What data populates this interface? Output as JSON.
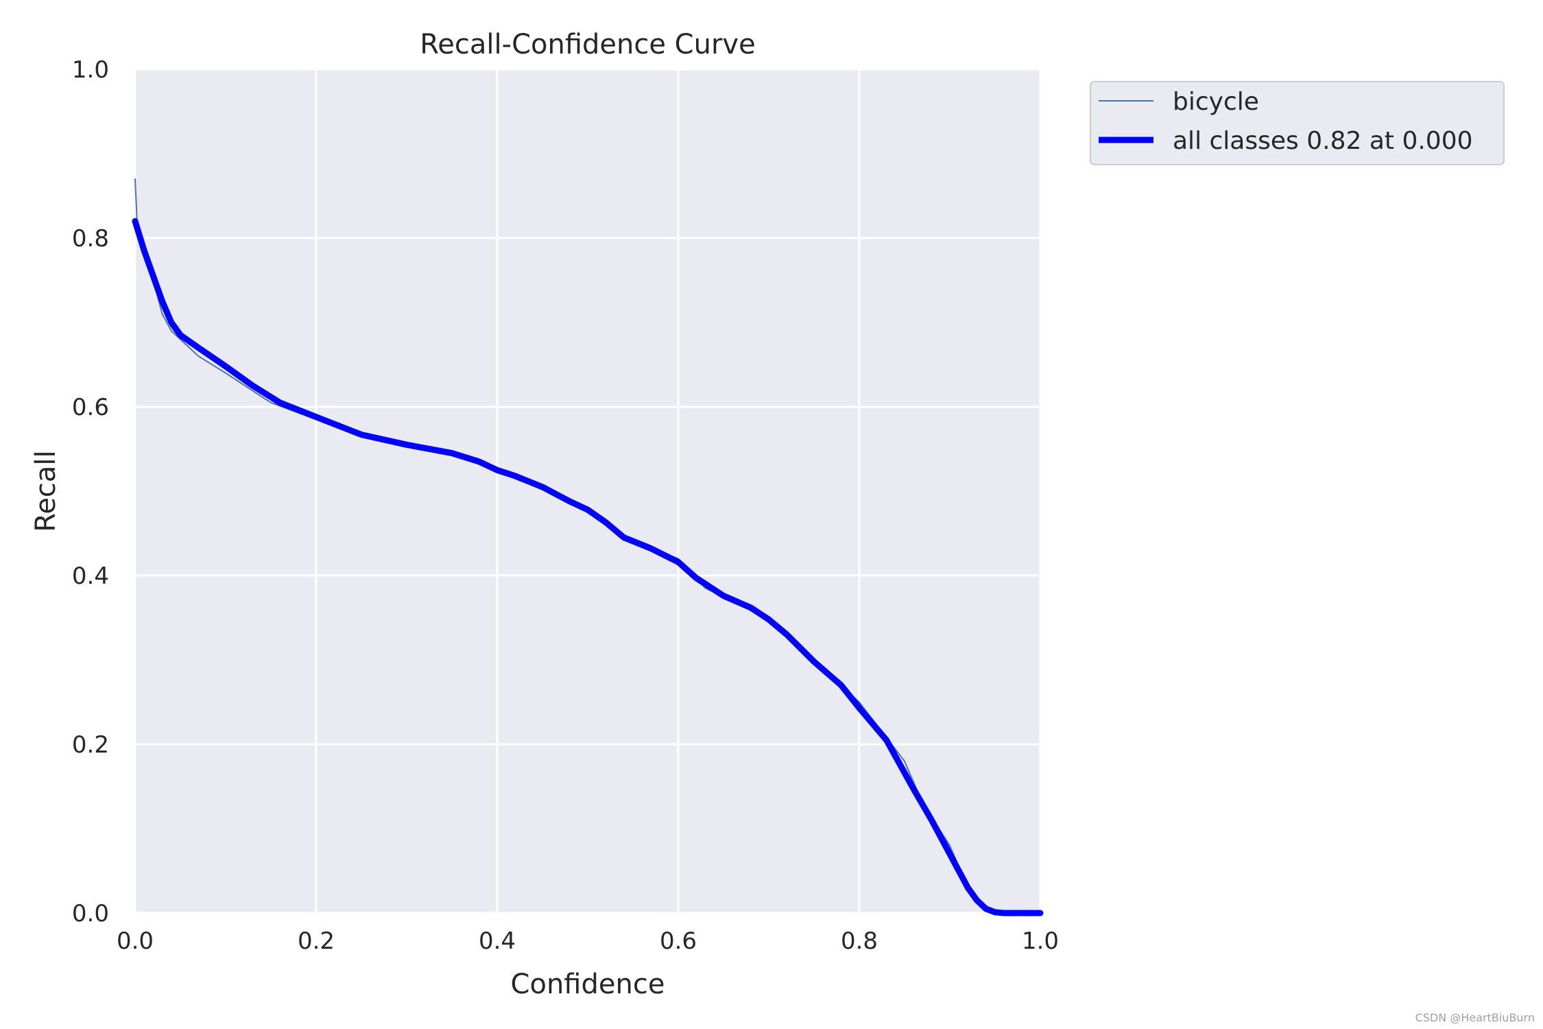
{
  "chart_data": {
    "type": "line",
    "title": "Recall-Confidence Curve",
    "xlabel": "Confidence",
    "ylabel": "Recall",
    "xlim": [
      0,
      1
    ],
    "ylim": [
      0,
      1
    ],
    "xticks": [
      "0.0",
      "0.2",
      "0.4",
      "0.6",
      "0.8",
      "1.0"
    ],
    "yticks": [
      "0.0",
      "0.2",
      "0.4",
      "0.6",
      "0.8",
      "1.0"
    ],
    "grid": true,
    "legend_position": "outside-top-right",
    "background_color": "#eaeaf2",
    "series": [
      {
        "name": "bicycle",
        "color": "#4c72b0",
        "x": [
          0.0,
          0.003,
          0.01,
          0.02,
          0.03,
          0.04,
          0.05,
          0.07,
          0.1,
          0.15,
          0.2,
          0.25,
          0.3,
          0.35,
          0.38,
          0.4,
          0.43,
          0.45,
          0.5,
          0.55,
          0.6,
          0.63,
          0.65,
          0.7,
          0.75,
          0.78,
          0.8,
          0.85,
          0.87,
          0.9,
          0.92,
          0.94,
          0.95,
          1.0
        ],
        "y": [
          0.87,
          0.8,
          0.78,
          0.75,
          0.71,
          0.69,
          0.68,
          0.66,
          0.64,
          0.605,
          0.585,
          0.565,
          0.555,
          0.545,
          0.535,
          0.525,
          0.515,
          0.505,
          0.475,
          0.44,
          0.42,
          0.385,
          0.375,
          0.35,
          0.3,
          0.27,
          0.25,
          0.18,
          0.13,
          0.08,
          0.03,
          0.005,
          0.0,
          0.0
        ]
      },
      {
        "name": "all classes 0.82 at 0.000",
        "color": "#0000ff",
        "x": [
          0.0,
          0.01,
          0.02,
          0.03,
          0.04,
          0.05,
          0.07,
          0.1,
          0.13,
          0.16,
          0.2,
          0.25,
          0.3,
          0.35,
          0.38,
          0.4,
          0.42,
          0.45,
          0.48,
          0.5,
          0.52,
          0.54,
          0.57,
          0.6,
          0.62,
          0.65,
          0.68,
          0.7,
          0.72,
          0.75,
          0.78,
          0.8,
          0.83,
          0.86,
          0.88,
          0.9,
          0.92,
          0.93,
          0.94,
          0.95,
          0.96,
          1.0
        ],
        "y": [
          0.82,
          0.785,
          0.755,
          0.725,
          0.7,
          0.685,
          0.67,
          0.648,
          0.625,
          0.605,
          0.588,
          0.567,
          0.555,
          0.545,
          0.535,
          0.525,
          0.518,
          0.505,
          0.488,
          0.478,
          0.463,
          0.445,
          0.432,
          0.416,
          0.397,
          0.376,
          0.362,
          0.348,
          0.33,
          0.298,
          0.27,
          0.243,
          0.205,
          0.147,
          0.11,
          0.07,
          0.03,
          0.015,
          0.005,
          0.001,
          0.0,
          0.0
        ]
      }
    ]
  },
  "watermark": "CSDN @HeartBiuBurn"
}
